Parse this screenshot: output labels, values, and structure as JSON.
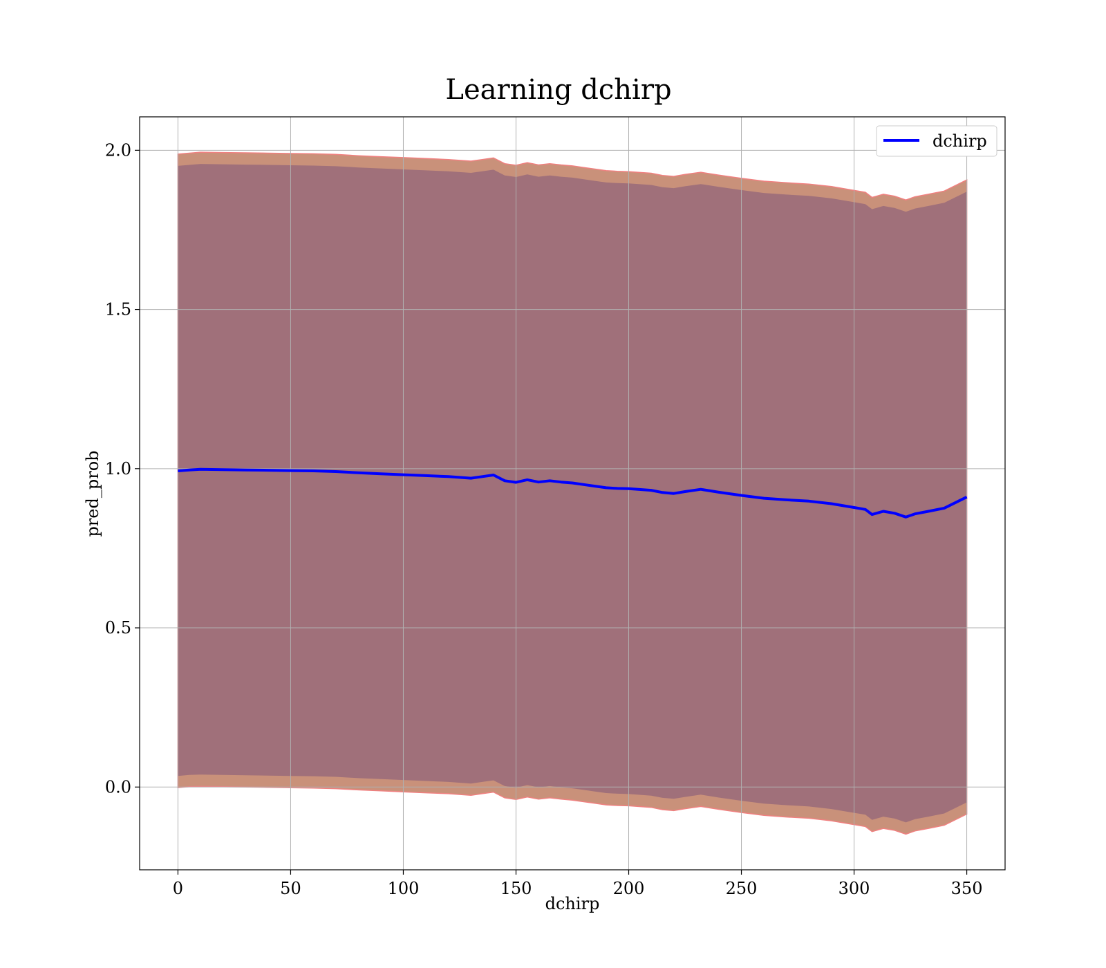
{
  "chart_data": {
    "type": "line",
    "title": "Learning dchirp",
    "xlabel": "dchirp",
    "ylabel": "pred_prob",
    "xlim": [
      -17,
      367
    ],
    "ylim": [
      -0.26,
      2.105
    ],
    "xticks": [
      0,
      50,
      100,
      150,
      200,
      250,
      300,
      350
    ],
    "yticks": [
      0.0,
      0.5,
      1.0,
      1.5,
      2.0
    ],
    "xtick_labels": [
      "0",
      "50",
      "100",
      "150",
      "200",
      "250",
      "300",
      "350"
    ],
    "ytick_labels": [
      "0.0",
      "0.5",
      "1.0",
      "1.5",
      "2.0"
    ],
    "grid": true,
    "legend_position": "top-right",
    "colors": {
      "line": "#0000ff",
      "outer_band": "#c9917a",
      "outer_band_edge": "#f08080",
      "inner_band": "#a0707a"
    },
    "series": [
      {
        "name": "dchirp",
        "x": [
          0,
          5,
          10,
          20,
          30,
          40,
          50,
          60,
          70,
          80,
          90,
          100,
          110,
          120,
          130,
          135,
          140,
          145,
          150,
          155,
          160,
          165,
          170,
          175,
          180,
          185,
          190,
          195,
          200,
          210,
          215,
          220,
          225,
          232,
          240,
          250,
          260,
          270,
          280,
          290,
          300,
          305,
          308,
          313,
          318,
          323,
          327,
          333,
          340,
          350
        ],
        "y": [
          0.993,
          0.996,
          0.998,
          0.997,
          0.996,
          0.995,
          0.994,
          0.993,
          0.991,
          0.987,
          0.984,
          0.981,
          0.978,
          0.975,
          0.97,
          0.975,
          0.98,
          0.962,
          0.957,
          0.965,
          0.958,
          0.962,
          0.958,
          0.955,
          0.95,
          0.945,
          0.94,
          0.938,
          0.937,
          0.932,
          0.925,
          0.922,
          0.928,
          0.935,
          0.926,
          0.916,
          0.907,
          0.902,
          0.898,
          0.89,
          0.878,
          0.872,
          0.856,
          0.866,
          0.86,
          0.848,
          0.858,
          0.866,
          0.876,
          0.911
        ]
      }
    ],
    "bands": [
      {
        "kind": "outer",
        "upper": [
          1.988,
          1.991,
          1.994,
          1.993,
          1.992,
          1.991,
          1.99,
          1.989,
          1.987,
          1.983,
          1.98,
          1.977,
          1.974,
          1.971,
          1.966,
          1.971,
          1.976,
          1.958,
          1.953,
          1.961,
          1.954,
          1.958,
          1.954,
          1.951,
          1.946,
          1.941,
          1.936,
          1.934,
          1.933,
          1.928,
          1.921,
          1.918,
          1.924,
          1.931,
          1.922,
          1.912,
          1.903,
          1.898,
          1.894,
          1.886,
          1.874,
          1.868,
          1.852,
          1.862,
          1.856,
          1.844,
          1.854,
          1.862,
          1.872,
          1.907
        ],
        "lower": [
          -0.002,
          0.001,
          0.002,
          0.001,
          0.0,
          -0.001,
          -0.002,
          -0.003,
          -0.005,
          -0.009,
          -0.012,
          -0.015,
          -0.018,
          -0.021,
          -0.026,
          -0.021,
          -0.016,
          -0.034,
          -0.039,
          -0.031,
          -0.038,
          -0.034,
          -0.038,
          -0.041,
          -0.046,
          -0.051,
          -0.056,
          -0.058,
          -0.059,
          -0.064,
          -0.071,
          -0.074,
          -0.068,
          -0.061,
          -0.07,
          -0.08,
          -0.089,
          -0.094,
          -0.098,
          -0.106,
          -0.118,
          -0.124,
          -0.14,
          -0.13,
          -0.136,
          -0.148,
          -0.138,
          -0.13,
          -0.12,
          -0.085
        ]
      },
      {
        "kind": "inner",
        "upper": [
          1.951,
          1.954,
          1.957,
          1.956,
          1.955,
          1.954,
          1.953,
          1.952,
          1.95,
          1.946,
          1.943,
          1.94,
          1.937,
          1.934,
          1.929,
          1.934,
          1.939,
          1.921,
          1.916,
          1.924,
          1.917,
          1.921,
          1.917,
          1.914,
          1.909,
          1.904,
          1.899,
          1.897,
          1.896,
          1.891,
          1.884,
          1.881,
          1.887,
          1.894,
          1.885,
          1.875,
          1.866,
          1.861,
          1.857,
          1.849,
          1.837,
          1.831,
          1.815,
          1.825,
          1.819,
          1.807,
          1.817,
          1.825,
          1.835,
          1.87
        ],
        "lower": [
          0.035,
          0.038,
          0.039,
          0.038,
          0.037,
          0.036,
          0.035,
          0.034,
          0.032,
          0.028,
          0.025,
          0.022,
          0.019,
          0.016,
          0.011,
          0.016,
          0.021,
          0.003,
          -0.002,
          0.006,
          -0.001,
          0.003,
          -0.001,
          -0.004,
          -0.009,
          -0.014,
          -0.019,
          -0.021,
          -0.022,
          -0.027,
          -0.034,
          -0.037,
          -0.031,
          -0.024,
          -0.033,
          -0.043,
          -0.052,
          -0.057,
          -0.061,
          -0.069,
          -0.081,
          -0.087,
          -0.103,
          -0.093,
          -0.099,
          -0.111,
          -0.101,
          -0.093,
          -0.083,
          -0.048
        ]
      }
    ]
  }
}
